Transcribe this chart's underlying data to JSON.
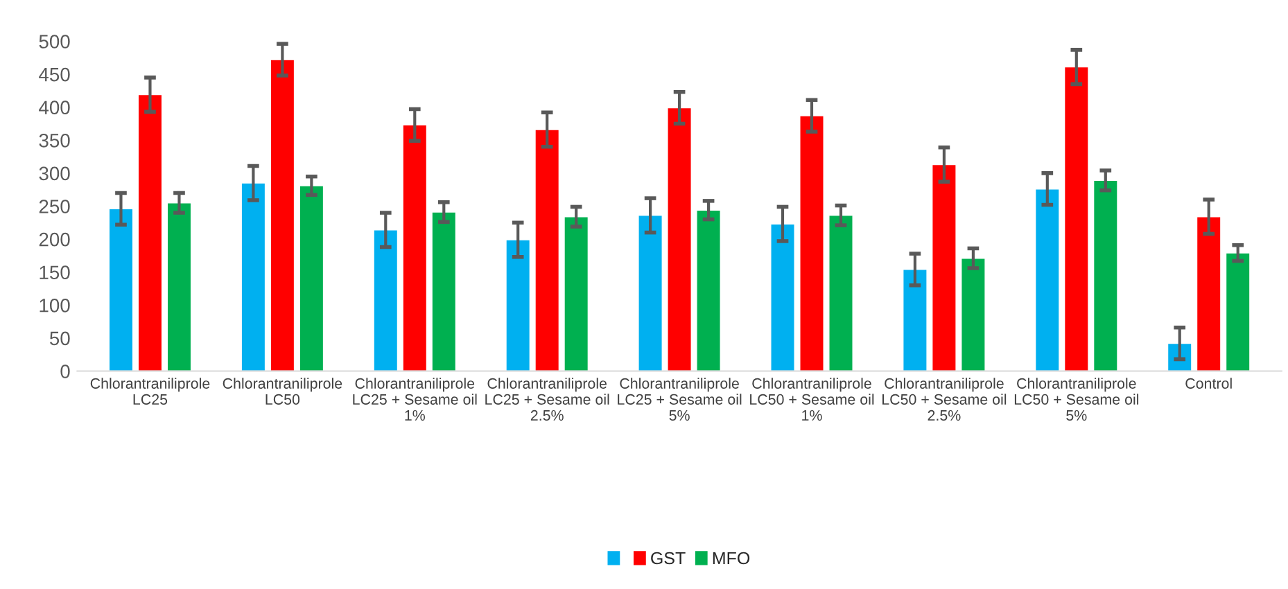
{
  "chart_data": {
    "type": "bar",
    "categories": [
      "Chlorantraniliprole\nLC25",
      "Chlorantraniliprole\nLC50",
      "Chlorantraniliprole\nLC25 + Sesame oil\n1%",
      "Chlorantraniliprole\nLC25 + Sesame oil\n2.5%",
      "Chlorantraniliprole\nLC25 + Sesame oil\n5%",
      "Chlorantraniliprole\nLC50 + Sesame oil\n1%",
      "Chlorantraniliprole\nLC50 + Sesame oil\n2.5%",
      "Chlorantraniliprole\nLC50 + Sesame oil\n5%",
      "Control"
    ],
    "series": [
      {
        "color": "#00b0f0",
        "values": [
          246,
          285,
          214,
          199,
          236,
          223,
          154,
          276,
          42
        ],
        "errors": [
          24,
          26,
          26,
          26,
          26,
          26,
          24,
          24,
          24
        ]
      },
      {
        "name": "GST",
        "color": "#ff0000",
        "values": [
          419,
          472,
          373,
          366,
          399,
          387,
          313,
          461,
          234
        ],
        "errors": [
          26,
          24,
          24,
          26,
          24,
          24,
          26,
          26,
          26
        ]
      },
      {
        "name": "MFO",
        "color": "#00b050",
        "values": [
          255,
          281,
          241,
          234,
          244,
          236,
          171,
          289,
          179
        ],
        "errors": [
          15,
          14,
          15,
          15,
          14,
          15,
          15,
          15,
          12
        ]
      }
    ],
    "ylim": [
      0,
      500
    ],
    "yticks": [
      0,
      50,
      100,
      150,
      200,
      250,
      300,
      350,
      400,
      450,
      500
    ],
    "grid": false,
    "legend": "bottom"
  }
}
